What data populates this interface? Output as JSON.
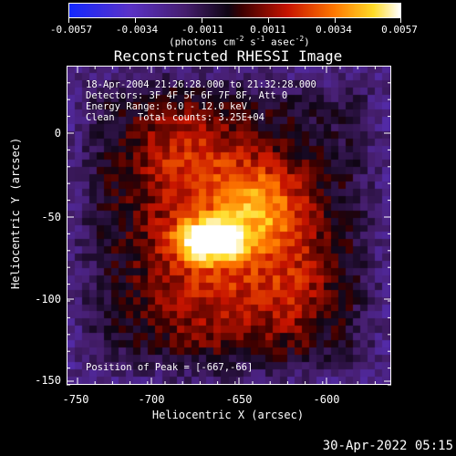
{
  "colorbar": {
    "tick_labels": [
      "-0.0057",
      "-0.0034",
      "-0.0011",
      "0.0011",
      "0.0034",
      "0.0057"
    ],
    "units_text": "(photons cm",
    "units_exp1": "-2",
    "units_mid": " s",
    "units_exp2": "-1",
    "units_mid2": " asec",
    "units_exp3": "-2",
    "units_end": ")"
  },
  "title": "Reconstructed RHESSI Image",
  "info": {
    "line1": "18-Apr-2004 21:26:28.000 to 21:32:28.000",
    "line2": "Detectors: 3F 4F 5F 6F 7F 8F, Att 0",
    "line3": "Energy Range: 6.0 - 12.0 keV",
    "line4": "Clean    Total counts: 3.25E+04",
    "peak": "Position of Peak = [-667,-66]"
  },
  "axes": {
    "xlabel": "Heliocentric X (arcsec)",
    "ylabel": "Heliocentric Y (arcsec)",
    "xticks": [
      "-750",
      "-700",
      "-650",
      "-600"
    ],
    "yticks": [
      "0",
      "-50",
      "-100",
      "-150"
    ]
  },
  "timestamp": "30-Apr-2022 05:15",
  "colors": {
    "background": "#000000",
    "foreground": "#ffffff"
  }
}
